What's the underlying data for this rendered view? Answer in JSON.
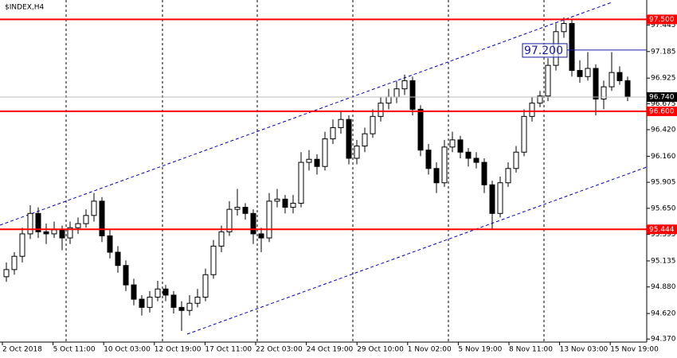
{
  "chart_data": {
    "type": "candlestick",
    "title": "$INDEX,H4",
    "x_labels": [
      "2 Oct 2018",
      "5 Oct 11:00",
      "10 Oct 03:00",
      "12 Oct 19:00",
      "17 Oct 11:00",
      "22 Oct 03:00",
      "24 Oct 19:00",
      "29 Oct 10:00",
      "1 Nov 02:00",
      "5 Nov 19:00",
      "8 Nov 11:00",
      "13 Nov 03:00",
      "15 Nov 19:00"
    ],
    "open": [
      94.98,
      95.05,
      95.18,
      95.4,
      95.6,
      95.42,
      95.4,
      95.44,
      95.36,
      95.46,
      95.5,
      95.58,
      95.72,
      95.38,
      95.22,
      95.09,
      94.9,
      94.76,
      94.68,
      94.78,
      94.86,
      94.8,
      94.68,
      94.65,
      94.72,
      94.78,
      95.0,
      95.28,
      95.42,
      95.64,
      95.66,
      95.6,
      95.4,
      95.36,
      95.72,
      95.74,
      95.66,
      95.7,
      96.1,
      96.13,
      96.06,
      96.33,
      96.44,
      96.52,
      96.14,
      96.26,
      96.38,
      96.55,
      96.68,
      96.74,
      96.82,
      96.9,
      96.62,
      96.22,
      96.04,
      95.9,
      96.25,
      96.32,
      96.2,
      96.14,
      96.1,
      95.88,
      95.6,
      95.9,
      96.04,
      96.2,
      96.55,
      96.68,
      96.75,
      97.05,
      97.38,
      97.46,
      97.0,
      96.94,
      97.02,
      96.72,
      96.84,
      96.98,
      96.9
    ],
    "high": [
      95.12,
      95.22,
      95.46,
      95.68,
      95.66,
      95.5,
      95.52,
      95.48,
      95.52,
      95.56,
      95.64,
      95.8,
      95.76,
      95.44,
      95.28,
      95.14,
      94.96,
      94.8,
      94.84,
      94.94,
      94.9,
      94.84,
      94.74,
      94.8,
      94.86,
      95.06,
      95.34,
      95.48,
      95.72,
      95.84,
      95.7,
      95.64,
      95.46,
      95.8,
      95.84,
      95.78,
      95.78,
      96.2,
      96.22,
      96.18,
      96.4,
      96.52,
      96.6,
      96.56,
      96.32,
      96.44,
      96.62,
      96.74,
      96.82,
      96.9,
      96.96,
      96.94,
      96.66,
      96.28,
      96.1,
      96.32,
      96.4,
      96.36,
      96.24,
      96.2,
      96.14,
      95.92,
      95.96,
      96.1,
      96.26,
      96.62,
      96.74,
      96.8,
      97.12,
      97.46,
      97.52,
      97.5,
      97.1,
      97.18,
      97.06,
      96.9,
      97.18,
      97.04,
      96.94
    ],
    "low": [
      94.93,
      95.0,
      95.12,
      95.35,
      95.36,
      95.3,
      95.36,
      95.24,
      95.3,
      95.4,
      95.46,
      95.52,
      95.32,
      95.16,
      95.02,
      94.84,
      94.7,
      94.6,
      94.63,
      94.74,
      94.74,
      94.62,
      94.45,
      94.6,
      94.68,
      94.74,
      94.96,
      95.22,
      95.38,
      95.58,
      95.54,
      95.3,
      95.22,
      95.32,
      95.66,
      95.6,
      95.6,
      95.66,
      96.02,
      95.98,
      96.02,
      96.28,
      96.38,
      96.08,
      96.08,
      96.2,
      96.34,
      96.5,
      96.62,
      96.68,
      96.76,
      96.56,
      96.16,
      95.98,
      95.8,
      95.86,
      96.2,
      96.14,
      96.06,
      96.04,
      95.8,
      95.45,
      95.56,
      95.86,
      96.0,
      96.16,
      96.5,
      96.64,
      96.7,
      97.0,
      97.32,
      96.94,
      96.88,
      96.9,
      96.56,
      96.62,
      96.8,
      96.86,
      96.7
    ],
    "close": [
      95.05,
      95.18,
      95.4,
      95.6,
      95.42,
      95.4,
      95.44,
      95.36,
      95.46,
      95.5,
      95.58,
      95.72,
      95.38,
      95.22,
      95.09,
      94.9,
      94.76,
      94.68,
      94.78,
      94.86,
      94.8,
      94.68,
      94.65,
      94.72,
      94.78,
      95.0,
      95.28,
      95.42,
      95.64,
      95.66,
      95.6,
      95.4,
      95.36,
      95.72,
      95.74,
      95.66,
      95.7,
      96.1,
      96.13,
      96.06,
      96.33,
      96.44,
      96.52,
      96.14,
      96.26,
      96.38,
      96.55,
      96.68,
      96.74,
      96.82,
      96.9,
      96.62,
      96.22,
      96.04,
      95.9,
      96.25,
      96.32,
      96.2,
      96.14,
      96.1,
      95.88,
      95.6,
      95.9,
      96.04,
      96.2,
      96.55,
      96.68,
      96.75,
      97.05,
      97.38,
      97.46,
      97.0,
      96.94,
      97.02,
      96.72,
      96.84,
      96.98,
      96.9,
      96.74
    ],
    "up_color": "#ffffff",
    "down_color": "#000000",
    "wick_color": "#000000",
    "ylim": [
      94.34,
      97.69
    ],
    "yticks": [
      97.445,
      97.185,
      96.925,
      96.675,
      {
        "value": 96.42,
        "label": "96.420"
      },
      {
        "value": 96.16,
        "label": "96.160"
      },
      95.905,
      {
        "value": 95.65,
        "label": "95.650"
      },
      95.395,
      95.135,
      {
        "value": 94.88,
        "label": "94.880"
      },
      {
        "value": 94.62,
        "label": "94.620"
      },
      {
        "value": 94.37,
        "label": "94.370"
      }
    ],
    "levels": [
      {
        "value": 97.5,
        "label": "97.500",
        "color": "#ff0000"
      },
      {
        "value": 96.6,
        "label": "96.600",
        "color": "#ff0000"
      },
      {
        "value": 95.444,
        "label": "95.444",
        "color": "#ff0000"
      }
    ],
    "current_price": {
      "value": 96.74,
      "label": "96.740"
    },
    "price_label": {
      "value": 97.2,
      "label": "97.200",
      "color": "#1a1aa6"
    }
  }
}
